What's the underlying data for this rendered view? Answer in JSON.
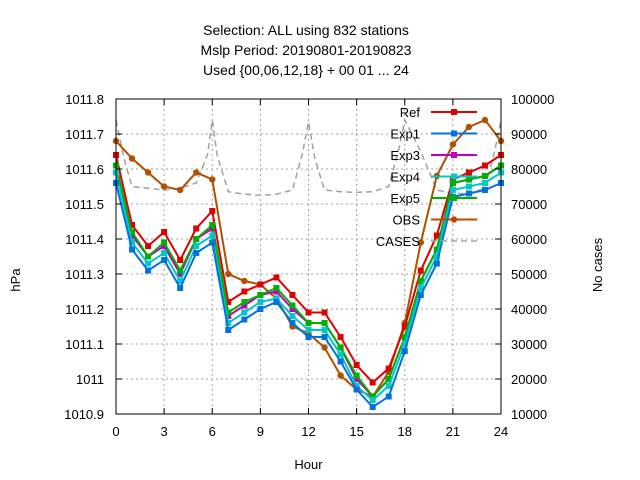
{
  "chart_data": {
    "type": "line",
    "title_lines": [
      "Selection: ALL using   832 stations",
      "Mslp   Period: 20190801-20190823",
      "Used {00,06,12,18} + 00 01 ... 24"
    ],
    "xlabel": "Hour",
    "ylabel": "hPa",
    "y2label": "No cases",
    "xlim": [
      0,
      24
    ],
    "ylim": [
      1010.9,
      1011.8
    ],
    "y2lim": [
      10000,
      100000
    ],
    "xticks": [
      "0",
      "3",
      "6",
      "9",
      "12",
      "15",
      "18",
      "21",
      "24"
    ],
    "yticks": [
      "1010.9",
      "1011",
      "1011.1",
      "1011.2",
      "1011.3",
      "1011.4",
      "1011.5",
      "1011.6",
      "1011.7",
      "1011.8"
    ],
    "y2ticks": [
      "10000",
      "20000",
      "30000",
      "40000",
      "50000",
      "60000",
      "70000",
      "80000",
      "90000",
      "100000"
    ],
    "grid": true,
    "legend_position": "top-right",
    "x": [
      0,
      1,
      2,
      3,
      4,
      5,
      6,
      7,
      8,
      9,
      10,
      11,
      12,
      13,
      14,
      15,
      16,
      17,
      18,
      19,
      20,
      21,
      22,
      23,
      24
    ],
    "series": [
      {
        "name": "Ref",
        "color": "#e00000",
        "marker": "square",
        "axis": "left",
        "values": [
          1011.64,
          1011.44,
          1011.38,
          1011.42,
          1011.34,
          1011.43,
          1011.48,
          1011.22,
          1011.25,
          1011.27,
          1011.29,
          1011.24,
          1011.19,
          1011.19,
          1011.12,
          1011.04,
          1010.99,
          1011.03,
          1011.15,
          1011.31,
          1011.41,
          1011.57,
          1011.59,
          1011.61,
          1011.64
        ]
      },
      {
        "name": "Exp1",
        "color": "#0072e0",
        "marker": "square",
        "axis": "left",
        "values": [
          1011.56,
          1011.37,
          1011.31,
          1011.34,
          1011.26,
          1011.36,
          1011.39,
          1011.14,
          1011.17,
          1011.2,
          1011.22,
          1011.16,
          1011.12,
          1011.12,
          1011.05,
          1010.97,
          1010.92,
          1010.95,
          1011.08,
          1011.24,
          1011.33,
          1011.52,
          1011.53,
          1011.54,
          1011.56
        ]
      },
      {
        "name": "Exp3",
        "color": "#c000c0",
        "marker": "square",
        "axis": "left",
        "values": [
          1011.61,
          1011.41,
          1011.35,
          1011.38,
          1011.3,
          1011.4,
          1011.43,
          1011.18,
          1011.21,
          1011.24,
          1011.25,
          1011.2,
          1011.16,
          1011.16,
          1011.09,
          1011.0,
          1010.95,
          1011.0,
          1011.12,
          1011.28,
          1011.37,
          1011.56,
          1011.57,
          1011.58,
          1011.61
        ]
      },
      {
        "name": "Exp4",
        "color": "#00c8c8",
        "marker": "square",
        "axis": "left",
        "values": [
          1011.59,
          1011.39,
          1011.33,
          1011.36,
          1011.28,
          1011.38,
          1011.41,
          1011.16,
          1011.19,
          1011.22,
          1011.23,
          1011.18,
          1011.14,
          1011.14,
          1011.07,
          1010.98,
          1010.94,
          1010.98,
          1011.1,
          1011.26,
          1011.35,
          1011.54,
          1011.55,
          1011.56,
          1011.59
        ]
      },
      {
        "name": "Exp5",
        "color": "#00b000",
        "marker": "square",
        "axis": "left",
        "values": [
          1011.61,
          1011.42,
          1011.35,
          1011.39,
          1011.31,
          1011.4,
          1011.44,
          1011.19,
          1011.22,
          1011.24,
          1011.26,
          1011.21,
          1011.16,
          1011.16,
          1011.09,
          1011.01,
          1010.95,
          1011.0,
          1011.12,
          1011.28,
          1011.37,
          1011.56,
          1011.57,
          1011.58,
          1011.61
        ]
      },
      {
        "name": "OBS",
        "color": "#b05000",
        "marker": "circle",
        "axis": "left",
        "values": [
          1011.68,
          1011.63,
          1011.59,
          1011.55,
          1011.54,
          1011.59,
          1011.57,
          1011.3,
          1011.28,
          1011.27,
          1011.23,
          1011.15,
          1011.13,
          1011.09,
          1011.01,
          1010.97,
          1010.95,
          1011.02,
          1011.16,
          1011.39,
          1011.58,
          1011.67,
          1011.72,
          1011.74,
          1011.68
        ]
      },
      {
        "name": "CASES",
        "color": "#a0a0a0",
        "marker": "none",
        "dashed": true,
        "axis": "right",
        "x": [
          0,
          0.5,
          1,
          2,
          3,
          4,
          5,
          5.7,
          6,
          6.3,
          7,
          8,
          9,
          10,
          11,
          11.6,
          12,
          12.4,
          13,
          14,
          15,
          16,
          17,
          17.6,
          18,
          19,
          20,
          21,
          22,
          23,
          23.6,
          24
        ],
        "values": [
          94000,
          83000,
          75000,
          74500,
          74000,
          74500,
          76000,
          84000,
          94000,
          84000,
          73500,
          72800,
          72500,
          72800,
          74000,
          84000,
          93500,
          83000,
          74000,
          73500,
          73300,
          73500,
          75000,
          85000,
          94000,
          85000,
          74000,
          73000,
          73000,
          74500,
          85000,
          94000
        ]
      }
    ]
  }
}
